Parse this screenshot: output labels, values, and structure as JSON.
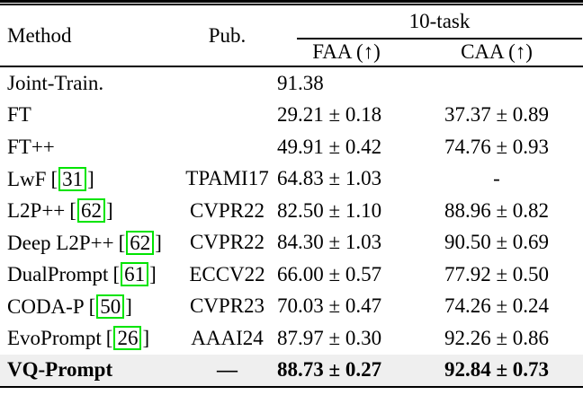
{
  "table": {
    "header": {
      "method": "Method",
      "pub": "Pub.",
      "group": "10-task",
      "faa": "FAA (↑)",
      "caa": "CAA (↑)"
    },
    "citation_open": "[",
    "citation_close": "]",
    "rows": [
      {
        "method": "Joint-Train.",
        "cite": "",
        "pub": "",
        "faa": "91.38",
        "caa": ""
      },
      {
        "method": "FT",
        "cite": "",
        "pub": "",
        "faa": "29.21 ± 0.18",
        "caa": "37.37 ± 0.89"
      },
      {
        "method": "FT++",
        "cite": "",
        "pub": "",
        "faa": "49.91 ± 0.42",
        "caa": "74.76 ± 0.93"
      },
      {
        "method": "LwF",
        "cite": "31",
        "pub": "TPAMI17",
        "faa": "64.83 ± 1.03",
        "caa": "-"
      },
      {
        "method": "L2P++",
        "cite": "62",
        "pub": "CVPR22",
        "faa": "82.50 ± 1.10",
        "caa": "88.96 ± 0.82"
      },
      {
        "method": "Deep L2P++",
        "cite": "62",
        "pub": "CVPR22",
        "faa": "84.30 ± 1.03",
        "caa": "90.50 ± 0.69"
      },
      {
        "method": "DualPrompt",
        "cite": "61",
        "pub": "ECCV22",
        "faa": "66.00 ± 0.57",
        "caa": "77.92 ± 0.50"
      },
      {
        "method": "CODA-P",
        "cite": "50",
        "pub": "CVPR23",
        "faa": "70.03 ± 0.47",
        "caa": "74.26 ± 0.24"
      },
      {
        "method": "EvoPrompt",
        "cite": "26",
        "pub": "AAAI24",
        "faa": "87.97 ± 0.30",
        "caa": "92.26 ± 0.86"
      },
      {
        "method": "VQ-Prompt",
        "cite": "",
        "pub": "—",
        "faa": "88.73 ± 0.27",
        "caa": "92.84 ± 0.73"
      }
    ],
    "colors": {
      "citation_box": "#00e400",
      "highlight_row": "#efefef",
      "rule": "#000000"
    }
  }
}
